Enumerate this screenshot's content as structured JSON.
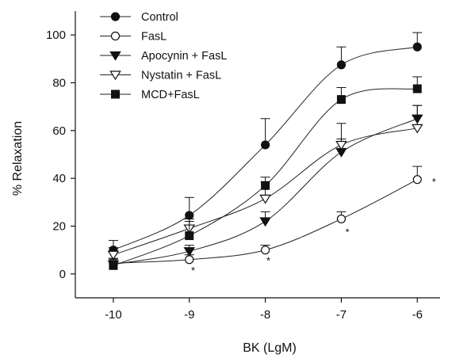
{
  "chart_data": {
    "type": "line",
    "xlabel": "BK (LgM)",
    "ylabel": "% Relaxation",
    "xlim": [
      -10.5,
      -5.7
    ],
    "ylim": [
      -10,
      110
    ],
    "x": [
      -10,
      -9,
      -8,
      -7,
      -6
    ],
    "xticks": [
      "-10",
      "-9",
      "-8",
      "-7",
      "-6"
    ],
    "yticks": [
      0,
      20,
      40,
      60,
      80,
      100
    ],
    "ytick_labels": [
      "0",
      "20",
      "40",
      "60",
      "80",
      "100"
    ],
    "legend_position": "top-left",
    "series": [
      {
        "name": "Control",
        "marker": "filled-circle",
        "values": [
          10,
          24.5,
          54,
          87.5,
          95
        ],
        "errors": [
          4,
          7.5,
          11,
          7.5,
          6
        ]
      },
      {
        "name": "FasL",
        "marker": "open-circle",
        "values": [
          4.5,
          6,
          10,
          23,
          39.5
        ],
        "errors": [
          2,
          2,
          2,
          3,
          5.5
        ]
      },
      {
        "name": "Apocynin + FasL",
        "marker": "filled-triangle-down",
        "values": [
          4,
          9.5,
          22,
          51,
          65
        ],
        "errors": [
          2,
          2.5,
          4,
          5.5,
          5.5
        ]
      },
      {
        "name": "Nystatin + FasL",
        "marker": "open-triangle-down",
        "values": [
          8,
          19,
          31.5,
          54,
          61
        ],
        "errors": [
          3,
          4,
          7,
          9,
          9.5
        ]
      },
      {
        "name": "MCD+FasL",
        "marker": "filled-square",
        "values": [
          3.5,
          16,
          37,
          73,
          77.5
        ],
        "errors": [
          3,
          6,
          3.5,
          5,
          5
        ]
      }
    ],
    "annotations": [
      {
        "text": "*",
        "x": -8.95,
        "y": 2
      },
      {
        "text": "*",
        "x": -7.96,
        "y": 6
      },
      {
        "text": "*",
        "x": -6.92,
        "y": 18
      },
      {
        "text": "*",
        "x": -5.78,
        "y": 39
      }
    ]
  }
}
